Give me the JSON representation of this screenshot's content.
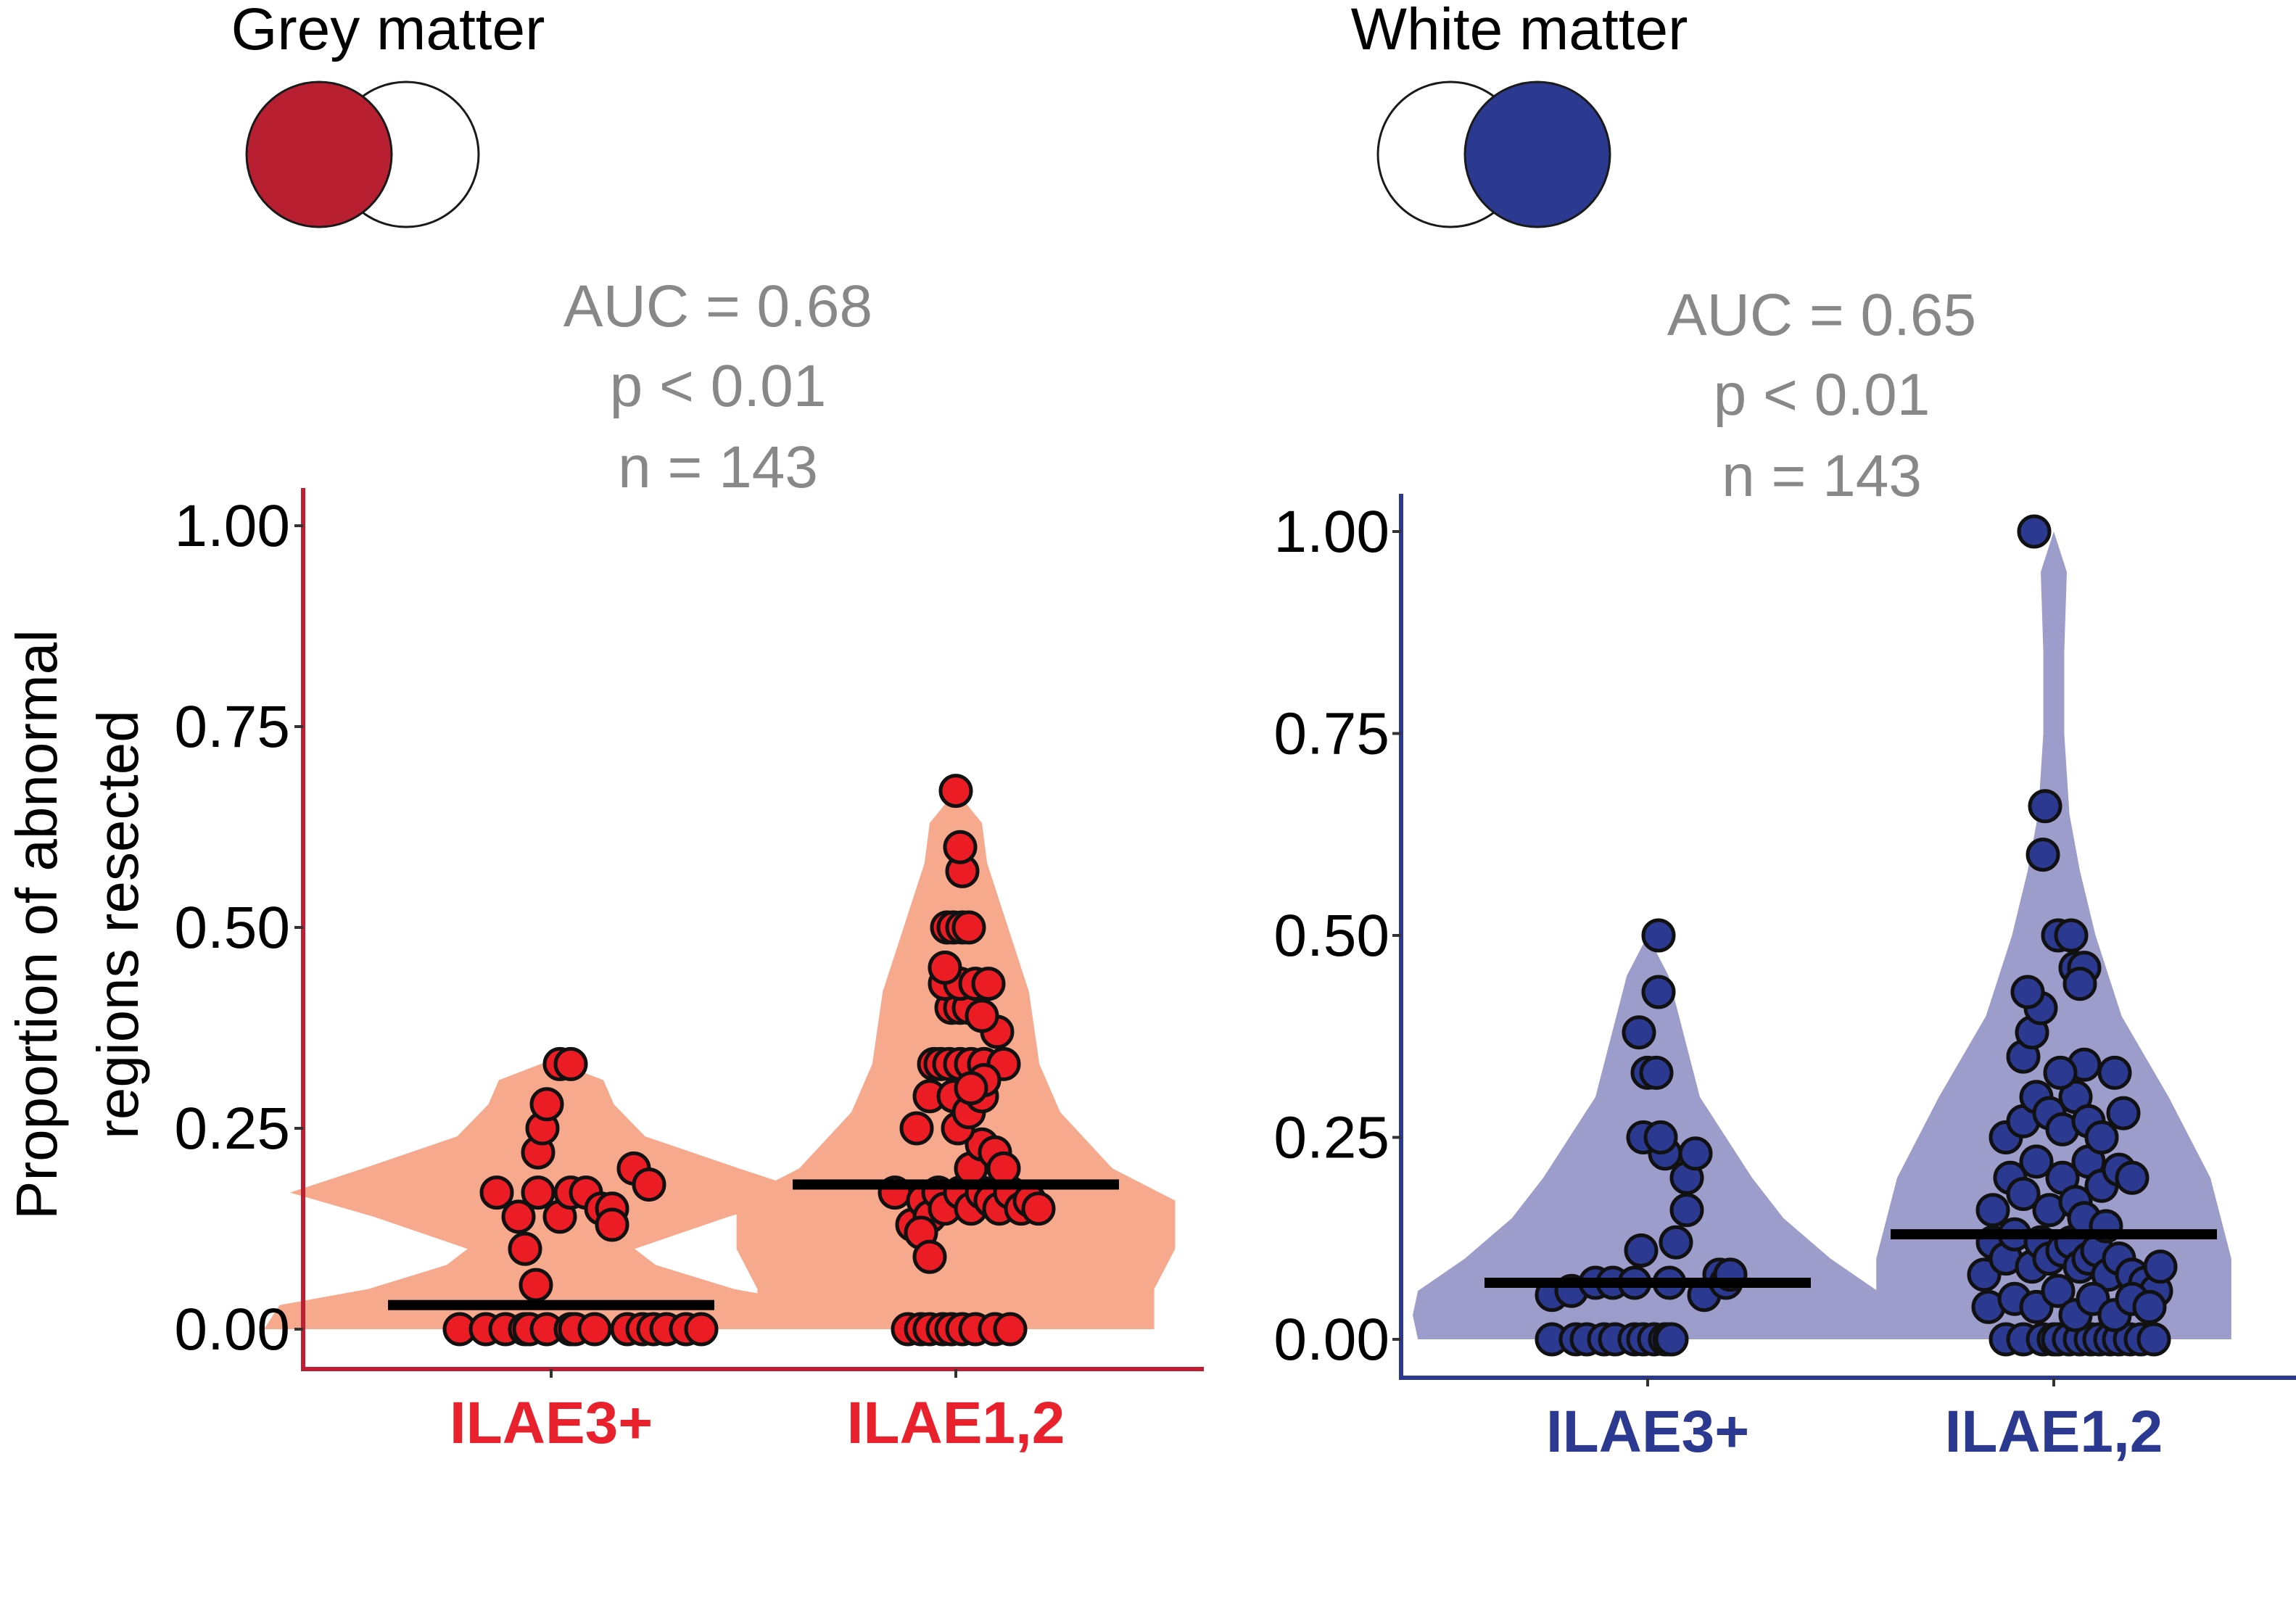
{
  "panels": [
    {
      "title": "Grey matter",
      "accent_color": "#b81f30",
      "axis_color": "#c01e32",
      "label_color": "#e8212c",
      "violin_color": "#f6a98c",
      "point_color": "#ec1c24",
      "icon": {
        "name": "grey-matter-venn-icon",
        "filled": "left",
        "fill_color": "#b81f30"
      },
      "stats": [
        "AUC = 0.68",
        "p < 0.01",
        "n = 143"
      ]
    },
    {
      "title": "White matter",
      "accent_color": "#2b3990",
      "axis_color": "#2b3990",
      "label_color": "#2b3990",
      "violin_color": "#9d9dcc",
      "point_color": "#2b3990",
      "icon": {
        "name": "white-matter-venn-icon",
        "filled": "right",
        "fill_color": "#2b3990"
      },
      "stats": [
        "AUC = 0.65",
        "p < 0.01",
        "n = 143"
      ]
    }
  ],
  "chart_data": [
    {
      "type": "violin-dot",
      "title": "Grey matter",
      "ylabel": "Proportion of abnormal regions resected",
      "ylabel_lines": [
        "Proportion of abnormal",
        "regions resected"
      ],
      "ylim": [
        0,
        1
      ],
      "yticks": [
        0,
        0.25,
        0.5,
        0.75,
        1
      ],
      "ytick_labels": [
        "0.00",
        "0.25",
        "0.50",
        "0.75",
        "1.00"
      ],
      "categories": [
        "ILAE3+",
        "ILAE1,2"
      ],
      "medians": [
        0.03,
        0.18
      ],
      "annotation": {
        "auc": 0.68,
        "p": "< 0.01",
        "n": 143
      },
      "groups": [
        {
          "name": "ILAE3+",
          "points": [
            [
              -0.42,
              0
            ],
            [
              -0.3,
              0
            ],
            [
              -0.21,
              0
            ],
            [
              -0.12,
              0
            ],
            [
              -0.1,
              0
            ],
            [
              -0.02,
              0
            ],
            [
              0.09,
              0
            ],
            [
              0.11,
              0
            ],
            [
              0.2,
              0
            ],
            [
              0.35,
              0
            ],
            [
              0.42,
              0
            ],
            [
              0.47,
              0
            ],
            [
              0.53,
              0
            ],
            [
              0.62,
              0
            ],
            [
              0.69,
              0
            ],
            [
              -0.25,
              0.17
            ],
            [
              -0.15,
              0.14
            ],
            [
              -0.06,
              0.17
            ],
            [
              0.04,
              0.14
            ],
            [
              0.09,
              0.17
            ],
            [
              0.16,
              0.17
            ],
            [
              0.23,
              0.15
            ],
            [
              0.28,
              0.15
            ],
            [
              0.38,
              0.2
            ],
            [
              0.45,
              0.18
            ],
            [
              0.28,
              0.13
            ],
            [
              -0.12,
              0.1
            ],
            [
              -0.07,
              0.055
            ],
            [
              -0.06,
              0.22
            ],
            [
              -0.04,
              0.25
            ],
            [
              -0.02,
              0.28
            ],
            [
              0.04,
              0.33
            ],
            [
              0.09,
              0.33
            ]
          ],
          "violin_profile": [
            [
              0,
              0.55
            ],
            [
              0.03,
              0.52
            ],
            [
              0.05,
              0.35
            ],
            [
              0.08,
              0.2
            ],
            [
              0.1,
              0.16
            ],
            [
              0.14,
              0.34
            ],
            [
              0.17,
              0.5
            ],
            [
              0.2,
              0.36
            ],
            [
              0.24,
              0.18
            ],
            [
              0.28,
              0.12
            ],
            [
              0.31,
              0.1
            ],
            [
              0.335,
              0.0
            ]
          ]
        },
        {
          "name": "ILAE1,2",
          "points": [
            [
              -0.22,
              0
            ],
            [
              -0.16,
              0
            ],
            [
              -0.12,
              0
            ],
            [
              -0.06,
              0
            ],
            [
              -0.02,
              0
            ],
            [
              0.03,
              0
            ],
            [
              0.09,
              0
            ],
            [
              0.18,
              0
            ],
            [
              0.25,
              0
            ],
            [
              -0.28,
              0.17
            ],
            [
              -0.2,
              0.13
            ],
            [
              -0.15,
              0.16
            ],
            [
              -0.12,
              0.14
            ],
            [
              -0.08,
              0.17
            ],
            [
              -0.05,
              0.15
            ],
            [
              0.02,
              0.17
            ],
            [
              0.07,
              0.15
            ],
            [
              0.12,
              0.17
            ],
            [
              0.16,
              0.16
            ],
            [
              0.2,
              0.15
            ],
            [
              0.25,
              0.17
            ],
            [
              0.3,
              0.15
            ],
            [
              0.34,
              0.16
            ],
            [
              0.38,
              0.15
            ],
            [
              -0.16,
              0.12
            ],
            [
              -0.12,
              0.09
            ],
            [
              0.07,
              0.2
            ],
            [
              0.12,
              0.23
            ],
            [
              0.18,
              0.22
            ],
            [
              0.22,
              0.2
            ],
            [
              -0.18,
              0.25
            ],
            [
              -0.12,
              0.29
            ],
            [
              0.01,
              0.25
            ],
            [
              -0.01,
              0.29
            ],
            [
              0.06,
              0.27
            ],
            [
              0.12,
              0.29
            ],
            [
              -0.1,
              0.33
            ],
            [
              -0.07,
              0.33
            ],
            [
              -0.03,
              0.33
            ],
            [
              0.02,
              0.33
            ],
            [
              0.07,
              0.33
            ],
            [
              0.13,
              0.33
            ],
            [
              0.22,
              0.33
            ],
            [
              0.13,
              0.31
            ],
            [
              0.07,
              0.3
            ],
            [
              0.19,
              0.37
            ],
            [
              -0.02,
              0.4
            ],
            [
              0.02,
              0.4
            ],
            [
              0.06,
              0.4
            ],
            [
              0.12,
              0.39
            ],
            [
              -0.05,
              0.43
            ],
            [
              0.02,
              0.43
            ],
            [
              0.09,
              0.43
            ],
            [
              0.15,
              0.43
            ],
            [
              -0.05,
              0.45
            ],
            [
              -0.04,
              0.5
            ],
            [
              -0.01,
              0.5
            ],
            [
              0.03,
              0.5
            ],
            [
              0.06,
              0.5
            ],
            [
              0.03,
              0.57
            ],
            [
              0.02,
              0.6
            ],
            [
              0.0,
              0.67
            ]
          ],
          "violin_profile": [
            [
              0,
              0.38
            ],
            [
              0.05,
              0.38
            ],
            [
              0.1,
              0.42
            ],
            [
              0.16,
              0.42
            ],
            [
              0.2,
              0.3
            ],
            [
              0.27,
              0.2
            ],
            [
              0.33,
              0.16
            ],
            [
              0.42,
              0.14
            ],
            [
              0.5,
              0.1
            ],
            [
              0.58,
              0.06
            ],
            [
              0.63,
              0.05
            ],
            [
              0.67,
              0.0
            ]
          ]
        }
      ]
    },
    {
      "type": "violin-dot",
      "title": "White matter",
      "ylabel": "",
      "ylim": [
        0,
        1
      ],
      "yticks": [
        0,
        0.25,
        0.5,
        0.75,
        1
      ],
      "ytick_labels": [
        "0.00",
        "0.25",
        "0.50",
        "0.75",
        "1.00"
      ],
      "categories": [
        "ILAE3+",
        "ILAE1,2"
      ],
      "medians": [
        0.07,
        0.13
      ],
      "annotation": {
        "auc": 0.65,
        "p": "< 0.01",
        "n": 143
      },
      "groups": [
        {
          "name": "ILAE3+",
          "points": [
            [
              -0.44,
              0
            ],
            [
              -0.33,
              0
            ],
            [
              -0.28,
              0
            ],
            [
              -0.2,
              0
            ],
            [
              -0.15,
              0
            ],
            [
              -0.06,
              0
            ],
            [
              -0.02,
              0
            ],
            [
              0.03,
              0
            ],
            [
              0.08,
              0
            ],
            [
              0.1,
              0
            ],
            [
              0.11,
              0
            ],
            [
              -0.44,
              0.055
            ],
            [
              -0.35,
              0.06
            ],
            [
              -0.24,
              0.07
            ],
            [
              -0.16,
              0.07
            ],
            [
              -0.06,
              0.07
            ],
            [
              0.1,
              0.07
            ],
            [
              0.26,
              0.055
            ],
            [
              0.33,
              0.08
            ],
            [
              0.36,
              0.07
            ],
            [
              0.38,
              0.08
            ],
            [
              -0.03,
              0.11
            ],
            [
              0.13,
              0.12
            ],
            [
              0.18,
              0.16
            ],
            [
              0.18,
              0.2
            ],
            [
              0.22,
              0.23
            ],
            [
              0.08,
              0.23
            ],
            [
              -0.02,
              0.25
            ],
            [
              0.06,
              0.25
            ],
            [
              0.0,
              0.33
            ],
            [
              0.04,
              0.33
            ],
            [
              -0.04,
              0.38
            ],
            [
              0.05,
              0.43
            ],
            [
              0.05,
              0.5
            ]
          ],
          "violin_profile": [
            [
              0,
              0.44
            ],
            [
              0.03,
              0.45
            ],
            [
              0.06,
              0.44
            ],
            [
              0.1,
              0.35
            ],
            [
              0.15,
              0.26
            ],
            [
              0.2,
              0.2
            ],
            [
              0.25,
              0.15
            ],
            [
              0.3,
              0.1
            ],
            [
              0.35,
              0.08
            ],
            [
              0.4,
              0.06
            ],
            [
              0.45,
              0.04
            ],
            [
              0.5,
              0.0
            ]
          ]
        },
        {
          "name": "ILAE1,2",
          "points": [
            [
              -0.22,
              0
            ],
            [
              -0.14,
              0
            ],
            [
              -0.05,
              0
            ],
            [
              0.0,
              0
            ],
            [
              0.02,
              0
            ],
            [
              0.07,
              0
            ],
            [
              0.12,
              0
            ],
            [
              0.17,
              0
            ],
            [
              0.21,
              0
            ],
            [
              0.26,
              0
            ],
            [
              0.3,
              0
            ],
            [
              0.35,
              0
            ],
            [
              0.4,
              0
            ],
            [
              0.46,
              0
            ],
            [
              -0.32,
              0.08
            ],
            [
              -0.28,
              0.12
            ],
            [
              -0.22,
              0.1
            ],
            [
              -0.18,
              0.13
            ],
            [
              -0.1,
              0.09
            ],
            [
              -0.06,
              0.12
            ],
            [
              -0.02,
              0.1
            ],
            [
              0.04,
              0.11
            ],
            [
              0.08,
              0.12
            ],
            [
              0.12,
              0.09
            ],
            [
              0.16,
              0.1
            ],
            [
              0.2,
              0.11
            ],
            [
              0.25,
              0.08
            ],
            [
              0.3,
              0.1
            ],
            [
              0.36,
              0.08
            ],
            [
              0.42,
              0.07
            ],
            [
              0.47,
              0.06
            ],
            [
              0.49,
              0.09
            ],
            [
              -0.3,
              0.04
            ],
            [
              -0.18,
              0.05
            ],
            [
              -0.08,
              0.04
            ],
            [
              0.02,
              0.06
            ],
            [
              0.1,
              0.03
            ],
            [
              0.18,
              0.05
            ],
            [
              0.28,
              0.03
            ],
            [
              0.36,
              0.05
            ],
            [
              0.44,
              0.04
            ],
            [
              -0.28,
              0.16
            ],
            [
              -0.2,
              0.2
            ],
            [
              -0.14,
              0.18
            ],
            [
              -0.08,
              0.22
            ],
            [
              -0.02,
              0.16
            ],
            [
              0.04,
              0.2
            ],
            [
              0.1,
              0.17
            ],
            [
              0.16,
              0.22
            ],
            [
              0.22,
              0.19
            ],
            [
              0.3,
              0.21
            ],
            [
              0.36,
              0.2
            ],
            [
              0.14,
              0.15
            ],
            [
              0.24,
              0.14
            ],
            [
              -0.22,
              0.25
            ],
            [
              -0.14,
              0.27
            ],
            [
              -0.08,
              0.3
            ],
            [
              -0.02,
              0.28
            ],
            [
              0.04,
              0.26
            ],
            [
              0.1,
              0.3
            ],
            [
              0.16,
              0.27
            ],
            [
              0.22,
              0.25
            ],
            [
              0.28,
              0.33
            ],
            [
              0.32,
              0.28
            ],
            [
              0.14,
              0.34
            ],
            [
              0.03,
              0.33
            ],
            [
              -0.14,
              0.35
            ],
            [
              -0.1,
              0.38
            ],
            [
              -0.06,
              0.41
            ],
            [
              -0.12,
              0.43
            ],
            [
              0.02,
              0.5
            ],
            [
              0.08,
              0.5
            ],
            [
              0.1,
              0.46
            ],
            [
              0.14,
              0.46
            ],
            [
              0.12,
              0.44
            ],
            [
              -0.05,
              0.6
            ],
            [
              -0.04,
              0.66
            ],
            [
              -0.09,
              1.0
            ]
          ],
          "violin_profile": [
            [
              0,
              0.34
            ],
            [
              0.1,
              0.34
            ],
            [
              0.2,
              0.3
            ],
            [
              0.3,
              0.22
            ],
            [
              0.4,
              0.13
            ],
            [
              0.5,
              0.08
            ],
            [
              0.58,
              0.05
            ],
            [
              0.65,
              0.03
            ],
            [
              0.75,
              0.02
            ],
            [
              0.85,
              0.02
            ],
            [
              0.95,
              0.025
            ],
            [
              1.0,
              0.0
            ]
          ]
        }
      ]
    }
  ]
}
